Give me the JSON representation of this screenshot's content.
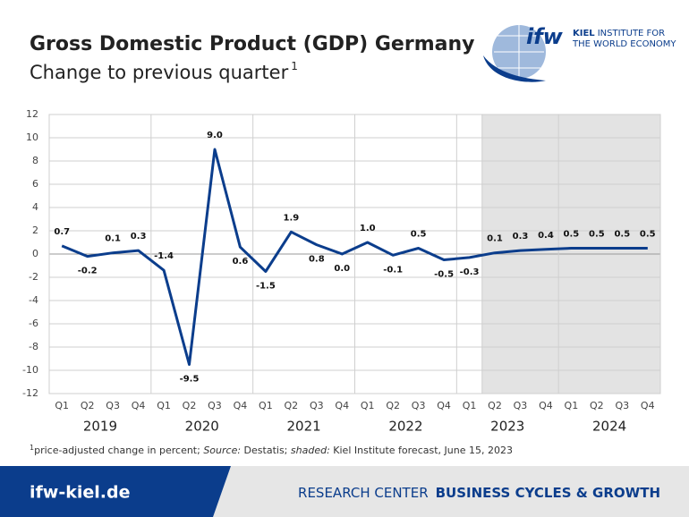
{
  "chart_data": {
    "type": "line",
    "title": "Gross Domestic Product (GDP) Germany",
    "subtitle": "Change to previous quarter",
    "subtitle_note": "1",
    "categories": [
      "Q1",
      "Q2",
      "Q3",
      "Q4",
      "Q1",
      "Q2",
      "Q3",
      "Q4",
      "Q1",
      "Q2",
      "Q3",
      "Q4",
      "Q1",
      "Q2",
      "Q3",
      "Q4",
      "Q1",
      "Q2",
      "Q3",
      "Q4",
      "Q1",
      "Q2",
      "Q3",
      "Q4"
    ],
    "years": [
      "2019",
      "2020",
      "2021",
      "2022",
      "2023",
      "2024"
    ],
    "values": [
      0.7,
      -0.2,
      0.1,
      0.3,
      -1.4,
      -9.5,
      9.0,
      0.6,
      -1.5,
      1.9,
      0.8,
      0.0,
      1.0,
      -0.1,
      0.5,
      -0.5,
      -0.3,
      0.1,
      0.3,
      0.4,
      0.5,
      0.5,
      0.5,
      0.5
    ],
    "value_labels": [
      "0.7",
      "-0.2",
      "0.1",
      "0.3",
      "-1.4",
      "-9.5",
      "9.0",
      "0.6",
      "-1.5",
      "1.9",
      "0.8",
      "0.0",
      "1.0",
      "-0.1",
      "0.5",
      "-0.5",
      "-0.3",
      "0.1",
      "0.3",
      "0.4",
      "0.5",
      "0.5",
      "0.5",
      "0.5"
    ],
    "color": "#0b3d8c",
    "shaded_from": 17,
    "shade_color": "#e3e3e3",
    "ylim": [
      -12,
      12
    ],
    "yticks": [
      -12,
      -10,
      -8,
      -6,
      -4,
      -2,
      0,
      2,
      4,
      6,
      8,
      10,
      12
    ],
    "grid": true,
    "footnote": [
      "1",
      "price-adjusted change in percent; ",
      "Source:",
      " Destatis; ",
      "shaded:",
      " Kiel Institute forecast, June 15, 2023"
    ]
  },
  "logo": {
    "mark": "ifw",
    "line1": "KIEL",
    "line1_rest": "INSTITUTE FOR",
    "line2": "THE WORLD ECONOMY"
  },
  "footer": {
    "site": "ifw-kiel.de",
    "center": "RESEARCH CENTER",
    "unit": "BUSINESS CYCLES & GROWTH"
  }
}
